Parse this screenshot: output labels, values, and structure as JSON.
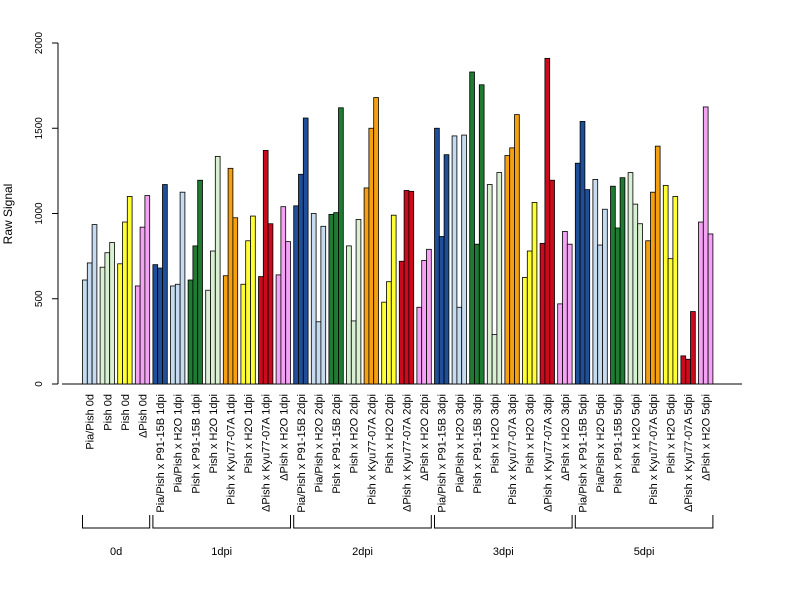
{
  "chart_data": {
    "type": "bar",
    "ylabel": "Raw Signal",
    "ylim": [
      0,
      2000
    ],
    "yticks": [
      0,
      500,
      1000,
      1500,
      2000
    ],
    "grid": false,
    "legend": "none",
    "categories": [
      "Pia/Pish 0d",
      "Pish 0d",
      "Pish 0d",
      "ΔPish 0d",
      "Pia/Pish x P91-15B 1dpi",
      "Pia/Pish x H2O 1dpi",
      "Pish x P91-15B 1dpi",
      "Pish x H2O 1dpi",
      "Pish x Kyu77-07A 1dpi",
      "Pish x H2O 1dpi",
      "ΔPish x Kyu77-07A 1dpi",
      "ΔPish x H2O 1dpi",
      "Pia/Pish x P91-15B 2dpi",
      "Pia/Pish x H2O 2dpi",
      "Pish x P91-15B 2dpi",
      "Pish x H2O 2dpi",
      "Pish x Kyu77-07A 2dpi",
      "Pish x H2O 2dpi",
      "ΔPish x Kyu77-07A 2dpi",
      "ΔPish x H2O 2dpi",
      "Pia/Pish x P91-15B 3dpi",
      "Pia/Pish x H2O 3dpi",
      "Pish x P91-15B 3dpi",
      "Pish x H2O 3dpi",
      "Pish x Kyu77-07A 3dpi",
      "Pish x H2O 3dpi",
      "ΔPish x Kyu77-07A 3dpi",
      "ΔPish x H2O 3dpi",
      "Pia/Pish x P91-15B 5dpi",
      "Pia/Pish x H2O 5dpi",
      "Pish x P91-15B 5dpi",
      "Pish x H2O 5dpi",
      "Pish x Kyu77-07A 5dpi",
      "Pish x H2O 5dpi",
      "ΔPish x Kyu77-07A 5dpi",
      "ΔPish x H2O 5dpi"
    ],
    "colors": [
      "#c6dbef",
      "#d9f0d3",
      "#ffff33",
      "#f4a3f4",
      "#1f4f99",
      "#c6dbef",
      "#1f7a32",
      "#d9f0d3",
      "#f5a011",
      "#ffff33",
      "#cc0a1e",
      "#f4a3f4",
      "#1f4f99",
      "#c6dbef",
      "#1f7a32",
      "#d9f0d3",
      "#f5a011",
      "#ffff33",
      "#cc0a1e",
      "#f4a3f4",
      "#1f4f99",
      "#c6dbef",
      "#1f7a32",
      "#d9f0d3",
      "#f5a011",
      "#ffff33",
      "#cc0a1e",
      "#f4a3f4",
      "#1f4f99",
      "#c6dbef",
      "#1f7a32",
      "#d9f0d3",
      "#f5a011",
      "#ffff33",
      "#cc0a1e",
      "#f4a3f4"
    ],
    "values": [
      [
        610,
        710,
        935
      ],
      [
        685,
        770,
        830
      ],
      [
        705,
        950,
        1100
      ],
      [
        575,
        920,
        1105
      ],
      [
        700,
        680,
        1170
      ],
      [
        575,
        585,
        1125
      ],
      [
        610,
        810,
        1195
      ],
      [
        550,
        780,
        1335
      ],
      [
        635,
        1265,
        975
      ],
      [
        585,
        840,
        985
      ],
      [
        630,
        1370,
        940
      ],
      [
        640,
        1040,
        835
      ],
      [
        1045,
        1230,
        1560
      ],
      [
        1000,
        365,
        925
      ],
      [
        995,
        1005,
        1620
      ],
      [
        810,
        370,
        965
      ],
      [
        1150,
        1500,
        1680
      ],
      [
        480,
        600,
        990
      ],
      [
        720,
        1135,
        1130
      ],
      [
        450,
        725,
        790
      ],
      [
        1500,
        865,
        1345
      ],
      [
        1455,
        450,
        1460
      ],
      [
        1830,
        820,
        1755
      ],
      [
        1170,
        290,
        1240
      ],
      [
        1340,
        1385,
        1580
      ],
      [
        625,
        780,
        1065
      ],
      [
        825,
        1910,
        1195
      ],
      [
        470,
        895,
        820
      ],
      [
        1295,
        1540,
        1140
      ],
      [
        1200,
        815,
        1025
      ],
      [
        1160,
        915,
        1210
      ],
      [
        1240,
        1055,
        940
      ],
      [
        840,
        1125,
        1395
      ],
      [
        1165,
        735,
        1100
      ],
      [
        165,
        145,
        425
      ],
      [
        950,
        1625,
        880
      ]
    ],
    "groups": [
      {
        "label": "0d",
        "start": 0,
        "end": 3
      },
      {
        "label": "1dpi",
        "start": 4,
        "end": 11
      },
      {
        "label": "2dpi",
        "start": 12,
        "end": 19
      },
      {
        "label": "3dpi",
        "start": 20,
        "end": 27
      },
      {
        "label": "5dpi",
        "start": 28,
        "end": 35
      }
    ]
  }
}
